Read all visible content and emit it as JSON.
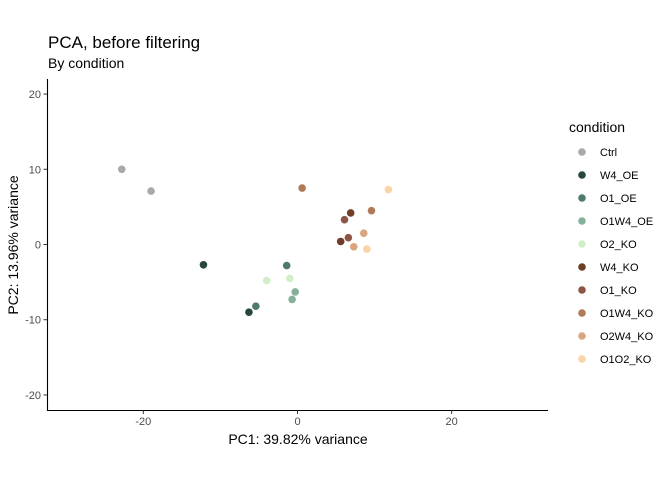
{
  "chart_data": {
    "type": "scatter",
    "title": "PCA, before filtering",
    "subtitle": "By condition",
    "xlabel": "PC1: 39.82% variance",
    "ylabel": "PC2: 13.96% variance",
    "xlim": [
      -32.5,
      32.5
    ],
    "ylim": [
      -22,
      22
    ],
    "xticks": [
      -20,
      0,
      20
    ],
    "xtick_labels": [
      "-20",
      "0",
      "20"
    ],
    "yticks": [
      -20,
      -10,
      0,
      10,
      20
    ],
    "ytick_labels": [
      "-20",
      "-10",
      "0",
      "10",
      "20"
    ],
    "grid": false,
    "legend_position": "right",
    "legend_title": "condition",
    "series": [
      {
        "name": "Ctrl",
        "color": "#A9A9A9",
        "points": [
          [
            -22.8,
            10.0
          ],
          [
            -19.0,
            7.1
          ]
        ]
      },
      {
        "name": "W4_OE",
        "color": "#26473A",
        "points": [
          [
            -12.2,
            -2.7
          ],
          [
            -6.3,
            -9.0
          ]
        ]
      },
      {
        "name": "O1_OE",
        "color": "#4E7B6A",
        "points": [
          [
            -5.4,
            -8.2
          ],
          [
            -1.4,
            -2.8
          ]
        ]
      },
      {
        "name": "O1W4_OE",
        "color": "#86B09A",
        "points": [
          [
            -0.3,
            -6.3
          ],
          [
            -0.7,
            -7.3
          ]
        ]
      },
      {
        "name": "O2_KO",
        "color": "#D0EFC8",
        "points": [
          [
            -4.0,
            -4.8
          ],
          [
            -1.0,
            -4.5
          ]
        ]
      },
      {
        "name": "W4_KO",
        "color": "#6E3E28",
        "points": [
          [
            5.6,
            0.4
          ],
          [
            6.9,
            4.2
          ]
        ]
      },
      {
        "name": "O1_KO",
        "color": "#8F5544",
        "points": [
          [
            6.1,
            3.3
          ],
          [
            6.6,
            0.9
          ]
        ]
      },
      {
        "name": "O1W4_KO",
        "color": "#B07A59",
        "points": [
          [
            0.6,
            7.5
          ],
          [
            9.6,
            4.5
          ]
        ]
      },
      {
        "name": "O2W4_KO",
        "color": "#D9A57E",
        "points": [
          [
            7.3,
            -0.3
          ],
          [
            8.6,
            1.5
          ]
        ]
      },
      {
        "name": "O1O2_KO",
        "color": "#FAD3A7",
        "points": [
          [
            11.8,
            7.3
          ],
          [
            9.0,
            -0.6
          ]
        ]
      }
    ]
  }
}
